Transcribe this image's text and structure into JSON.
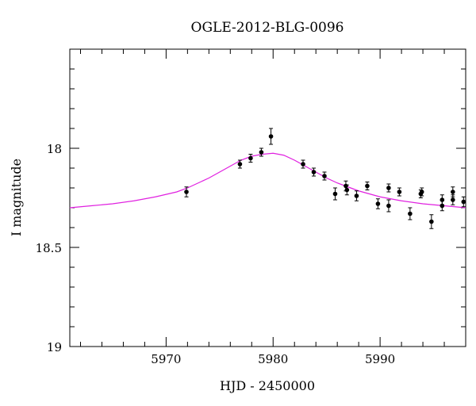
{
  "chart_data": {
    "type": "scatter",
    "title": "OGLE-2012-BLG-0096",
    "xlabel": "HJD - 2450000",
    "ylabel": "I magnitude",
    "xlim": [
      5961.0,
      5998.0
    ],
    "ylim": [
      19.0,
      17.5
    ],
    "y_inverted": true,
    "xticks": [
      5970,
      5980,
      5990
    ],
    "yticks": [
      18,
      18.5,
      19
    ],
    "x_minor_step": 2,
    "y_minor_step": 0.1,
    "grid": false,
    "series": [
      {
        "kind": "points_with_errorbars",
        "color": "#000000",
        "points": [
          {
            "x": 5971.9,
            "y": 18.22,
            "err": 0.025
          },
          {
            "x": 5976.9,
            "y": 18.08,
            "err": 0.02
          },
          {
            "x": 5977.9,
            "y": 18.05,
            "err": 0.02
          },
          {
            "x": 5978.9,
            "y": 18.02,
            "err": 0.02
          },
          {
            "x": 5979.8,
            "y": 17.94,
            "err": 0.04
          },
          {
            "x": 5982.8,
            "y": 18.08,
            "err": 0.02
          },
          {
            "x": 5983.8,
            "y": 18.12,
            "err": 0.02
          },
          {
            "x": 5984.8,
            "y": 18.14,
            "err": 0.02
          },
          {
            "x": 5985.8,
            "y": 18.23,
            "err": 0.03
          },
          {
            "x": 5986.8,
            "y": 18.19,
            "err": 0.025
          },
          {
            "x": 5986.9,
            "y": 18.21,
            "err": 0.025
          },
          {
            "x": 5987.8,
            "y": 18.24,
            "err": 0.025
          },
          {
            "x": 5988.8,
            "y": 18.19,
            "err": 0.02
          },
          {
            "x": 5989.8,
            "y": 18.28,
            "err": 0.025
          },
          {
            "x": 5990.8,
            "y": 18.2,
            "err": 0.02
          },
          {
            "x": 5990.8,
            "y": 18.29,
            "err": 0.03
          },
          {
            "x": 5991.8,
            "y": 18.22,
            "err": 0.02
          },
          {
            "x": 5992.8,
            "y": 18.33,
            "err": 0.03
          },
          {
            "x": 5993.8,
            "y": 18.23,
            "err": 0.02
          },
          {
            "x": 5993.9,
            "y": 18.22,
            "err": 0.02
          },
          {
            "x": 5994.8,
            "y": 18.37,
            "err": 0.035
          },
          {
            "x": 5995.8,
            "y": 18.29,
            "err": 0.025
          },
          {
            "x": 5995.8,
            "y": 18.26,
            "err": 0.025
          },
          {
            "x": 5996.8,
            "y": 18.26,
            "err": 0.025
          },
          {
            "x": 5996.8,
            "y": 18.22,
            "err": 0.025
          },
          {
            "x": 5997.8,
            "y": 18.27,
            "err": 0.025
          }
        ]
      },
      {
        "kind": "model_curve",
        "color": "#e020e0",
        "x": [
          5961,
          5963,
          5965,
          5967,
          5969,
          5971,
          5972,
          5973,
          5974,
          5975,
          5976,
          5977,
          5978,
          5979,
          5980,
          5981,
          5982,
          5983,
          5984,
          5985,
          5986,
          5987,
          5988,
          5989,
          5990,
          5992,
          5994,
          5996,
          5998
        ],
        "y": [
          18.3,
          18.29,
          18.28,
          18.265,
          18.245,
          18.22,
          18.2,
          18.175,
          18.15,
          18.12,
          18.09,
          18.06,
          18.04,
          18.03,
          18.025,
          18.035,
          18.06,
          18.09,
          18.12,
          18.15,
          18.175,
          18.195,
          18.215,
          18.23,
          18.245,
          18.265,
          18.28,
          18.29,
          18.3
        ]
      }
    ]
  }
}
